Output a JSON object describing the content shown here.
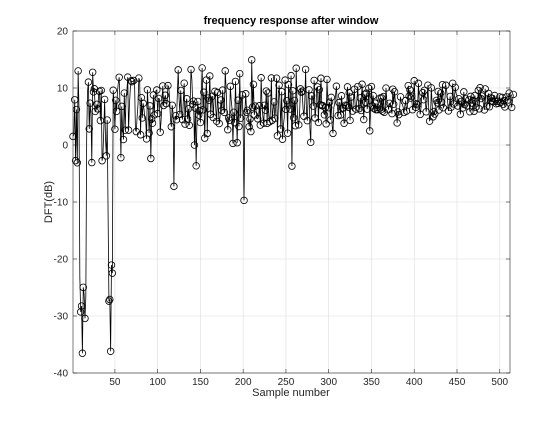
{
  "chart_data": {
    "type": "stem",
    "title": "frequency response after window",
    "xlabel": "Sample number",
    "ylabel": "DFT(dB)",
    "xlim": [
      1,
      512
    ],
    "ylim": [
      -40,
      20
    ],
    "xticks": [
      50,
      100,
      150,
      200,
      250,
      300,
      350,
      400,
      450,
      500
    ],
    "xtick_labels": [
      "50",
      "100",
      "150",
      "200",
      "250",
      "300",
      "350",
      "400",
      "450",
      "500"
    ],
    "yticks": [
      -40,
      -30,
      -20,
      -10,
      0,
      10,
      20
    ],
    "ytick_labels": [
      "-40",
      "-30",
      "-20",
      "-10",
      "0",
      "10",
      "20"
    ],
    "grid": true,
    "marker": "circle",
    "colors": {
      "line": "#000000",
      "grid": "#dcdcdc",
      "axis": "#262626",
      "background": "#ffffff"
    },
    "x_start": 1,
    "x_step": 1,
    "values": [
      1.52,
      1.82,
      7.93,
      -2.74,
      6.22,
      -3.12,
      12.99,
      6.39,
      -23.3,
      -29.28,
      -28.25,
      -36.53,
      -24.97,
      -26.22,
      -30.41,
      -26.6,
      1.36,
      9.43,
      11.03,
      2.83,
      7.34,
      5.41,
      -3.09,
      12.76,
      9.32,
      9.87,
      5.89,
      6.12,
      7.14,
      6.34,
      8.89,
      9.41,
      4.28,
      9.58,
      -2.76,
      -1.73,
      2.64,
      7.99,
      1.12,
      -1.89,
      4.38,
      -11.51,
      -27.39,
      -27.1,
      -36.19,
      -21.06,
      -22.48,
      9.61,
      7.22,
      2.77,
      7.84,
      5.91,
      9.41,
      10.9,
      11.88,
      7.03,
      -2.22,
      6.78,
      2.82,
      0.96,
      9.11,
      2.6,
      8.06,
      9.48,
      11.91,
      2.61,
      7.1,
      9.86,
      11.25,
      11.09,
      11.14,
      11.32,
      10.82,
      2.7,
      2.35,
      4.98,
      7.07,
      11.74,
      11.34,
      1.8,
      8.3,
      4.75,
      7.32,
      6.29,
      4.63,
      4.56,
      1.07,
      9.69,
      6.57,
      2.1,
      6.87,
      -2.37,
      4.56,
      3.83,
      8.77,
      5.27,
      8.77,
      9.5,
      9.65,
      5.51,
      8.17,
      8.11,
      2.25,
      4.28,
      7.14,
      10.37,
      6.93,
      8.24,
      8.73,
      7.26,
      7.27,
      10.42,
      10.16,
      8.06,
      4.43,
      3.2,
      6.97,
      5.56,
      -7.26,
      4.05,
      5.12,
      4.44,
      8.88,
      13.18,
      8.32,
      5.37,
      9.58,
      5.6,
      4.46,
      7.74,
      10.84,
      3.67,
      7.31,
      8.12,
      4.54,
      6.35,
      3.46,
      7.4,
      13.24,
      11.49,
      7.14,
      7.7,
      -0.01,
      6.47,
      -3.65,
      4.64,
      7.65,
      5.24,
      6.03,
      3.94,
      8.76,
      13.52,
      6.17,
      9.26,
      1.21,
      7.34,
      11.4,
      2.02,
      8.24,
      7.84,
      12.11,
      5.4,
      7.92,
      8.57,
      4.82,
      8.4,
      9.41,
      6.23,
      4.16,
      9.21,
      6.08,
      3.76,
      5.09,
      7.9,
      6.06,
      9.63,
      6.49,
      5.72,
      13.01,
      10.07,
      5.81,
      2.68,
      4.75,
      4.35,
      10.29,
      7.82,
      6.34,
      0.28,
      5.74,
      3.92,
      11.16,
      5.54,
      0.4,
      7.85,
      3.24,
      12.52,
      4.71,
      7.86,
      8.8,
      2.88,
      -9.72,
      5.81,
      8.99,
      5.74,
      6.09,
      4.75,
      3.23,
      4.55,
      2.35,
      14.94,
      6.63,
      10.64,
      5.28,
      6.82,
      6.2,
      4.65,
      4.61,
      5.02,
      6.89,
      3.5,
      11.8,
      7.06,
      5.07,
      3.83,
      6.97,
      6.11,
      9.47,
      3.79,
      9.12,
      5.03,
      4.08,
      6.3,
      11.76,
      4.34,
      6.26,
      7.56,
      4.7,
      6.56,
      11.72,
      1.62,
      6.2,
      10.48,
      7.78,
      2.81,
      9.36,
      1.01,
      3.45,
      4.79,
      11.38,
      6.25,
      7.78,
      2.07,
      10.59,
      7.55,
      6.31,
      12.17,
      -3.7,
      9.51,
      4.79,
      7.82,
      3.38,
      13.47,
      7.01,
      4.18,
      3.54,
      5.81,
      9.85,
      9.26,
      9.46,
      6.32,
      5.05,
      7.35,
      13.26,
      5.74,
      4.27,
      8.83,
      9.69,
      2.94,
      0.47,
      8.62,
      8.59,
      6.83,
      11.33,
      4.74,
      6.21,
      9.88,
      10.19,
      3.96,
      9.7,
      7.06,
      11.71,
      6.9,
      6.92,
      5.72,
      5.3,
      6.56,
      3.71,
      11.5,
      7.41,
      6.54,
      7.52,
      4.4,
      8.36,
      3.44,
      2.04,
      6.59,
      7.21,
      8.71,
      10.31,
      7.34,
      5.16,
      7.44,
      7.42,
      5.26,
      8.64,
      6.46,
      6.49,
      3.82,
      4.03,
      6.99,
      6.84,
      10.2,
      6.6,
      9.18,
      4.33,
      8.4,
      6.66,
      5.95,
      8.05,
      9.77,
      6.69,
      6.3,
      7.99,
      10.26,
      6.53,
      6.4,
      8.27,
      6.06,
      10.66,
      7.71,
      4.47,
      8.88,
      7.52,
      9.1,
      6.29,
      7.5,
      9.96,
      2.48,
      5.85,
      10.26,
      6.87,
      8.67,
      6.4,
      7.35,
      6.2,
      6.62,
      6.19,
      7.36,
      7.38,
      8.23,
      6.18,
      8.26,
      5.94,
      8.5,
      5.74,
      6.24,
      9.99,
      7.66,
      7.43,
      6.22,
      7.32,
      6.91,
      6.71,
      5.5,
      9.8,
      7.16,
      9.35,
      7.58,
      6.38,
      3.87,
      5.78,
      5.33,
      6.57,
      8.45,
      7.26,
      7.24,
      6.68,
      5.71,
      6.79,
      7.79,
      5.95,
      6.8,
      10.41,
      8.58,
      9.67,
      8.24,
      8.56,
      6.19,
      6.8,
      11.27,
      7.71,
      6.6,
      7.25,
      7.06,
      10.81,
      6.9,
      5.38,
      6.59,
      9.17,
      9.19,
      7.95,
      9.6,
      7.46,
      5.83,
      7.62,
      10.49,
      6.24,
      4.18,
      4.86,
      10.03,
      7.11,
      4.94,
      5.87,
      5.43,
      7.58,
      7.82,
      7.41,
      9.4,
      6.15,
      8.1,
      9.11,
      7.51,
      10.59,
      6.54,
      6.79,
      8.29,
      10.48,
      9.46,
      7.74,
      5.98,
      6.89,
      8.52,
      6.61,
      7.03,
      10.82,
      7.21,
      8.33,
      10.12,
      9.03,
      8.7,
      6.84,
      8.13,
      7.22,
      5.4,
      7.64,
      7.36,
      6.51,
      9.32,
      7.11,
      8.08,
      7.06,
      6.87,
      7.02,
      7.91,
      5.83,
      8.53,
      8.23,
      7.35,
      7.8,
      5.92,
      8.69,
      6.63,
      6.65,
      7.52,
      9.58,
      6.34,
      10.05,
      8.15,
      8.6,
      7.84,
      7.24,
      6.16,
      9.84,
      6.85,
      6.83,
      8.34,
      9.05,
      6.72,
      8.35,
      7.72,
      8.19,
      7.61,
      7.66,
      8.69,
      7.95,
      7.23,
      7.66,
      7.32,
      7.85,
      8.43,
      7.47,
      7.74,
      8.34,
      7.12,
      7.77,
      6.68,
      8.26,
      8.43,
      8.04,
      7.9,
      9.11,
      8.19,
      7.83,
      6.59,
      7.91,
      8.87
    ]
  }
}
